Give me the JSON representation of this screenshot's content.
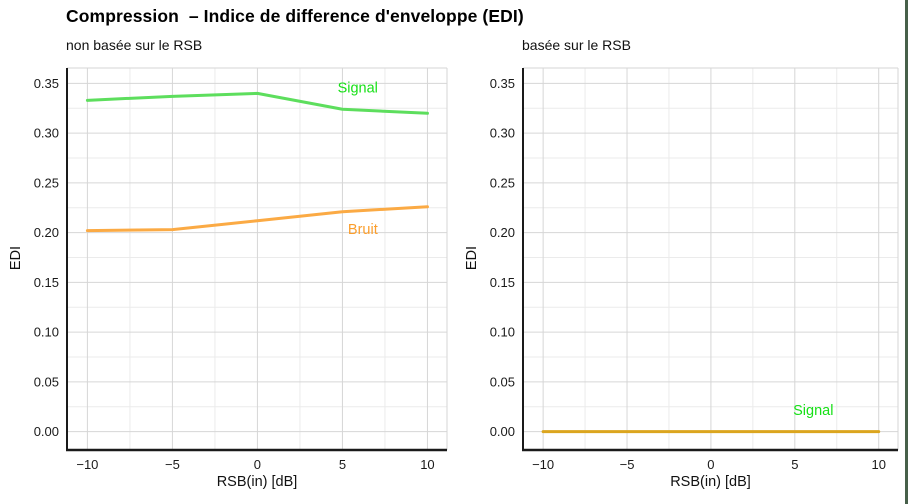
{
  "title": "Compression  – Indice de difference d'enveloppe (EDI)",
  "frame_edge_color": "#47604a",
  "axis_color": "#1a1a1a",
  "grid_major_color": "#d6d6d6",
  "grid_minor_color": "#ebebeb",
  "tick_label_color": "#1a1a1a",
  "chart_data": [
    {
      "type": "line",
      "subtitle": "non basée sur le RSB",
      "xlabel": "RSB(in) [dB]",
      "ylabel": "EDI",
      "grid": true,
      "x": [
        -10,
        -5,
        0,
        5,
        10
      ],
      "xlim": [
        -11.2,
        11.15
      ],
      "ylim": [
        -0.0185,
        0.3655
      ],
      "xticks": [
        -10,
        -5,
        0,
        5,
        10
      ],
      "xtick_labels": [
        "−10",
        "−5",
        "0",
        "5",
        "10"
      ],
      "yticks": [
        0,
        0.05,
        0.1,
        0.15,
        0.2,
        0.25,
        0.3,
        0.35
      ],
      "ytick_labels": [
        "0.00",
        "0.05",
        "0.10",
        "0.15",
        "0.20",
        "0.25",
        "0.30",
        "0.35"
      ],
      "minor_xticks": [
        -7.5,
        -2.5,
        2.5,
        7.5
      ],
      "minor_yticks": [
        0.025,
        0.075,
        0.125,
        0.175,
        0.225,
        0.275,
        0.325
      ],
      "series": [
        {
          "name": "Signal",
          "values": [
            0.333,
            0.337,
            0.34,
            0.324,
            0.32
          ],
          "line_color": "#5dde5d",
          "label_color": "#17e017",
          "label_x": 5.9,
          "label_y": 0.346
        },
        {
          "name": "Bruit",
          "values": [
            0.202,
            0.203,
            0.212,
            0.221,
            0.226
          ],
          "line_color": "#fbaa44",
          "label_color": "#fb9e2d",
          "label_x": 6.2,
          "label_y": 0.2035
        }
      ]
    },
    {
      "type": "line",
      "subtitle": "basée sur le RSB",
      "xlabel": "RSB(in) [dB]",
      "ylabel": "EDI",
      "grid": true,
      "x": [
        -10,
        -5,
        0,
        5,
        10
      ],
      "xlim": [
        -11.2,
        11.15
      ],
      "ylim": [
        -0.0185,
        0.3655
      ],
      "xticks": [
        -10,
        -5,
        0,
        5,
        10
      ],
      "xtick_labels": [
        "−10",
        "−5",
        "0",
        "5",
        "10"
      ],
      "yticks": [
        0,
        0.05,
        0.1,
        0.15,
        0.2,
        0.25,
        0.3,
        0.35
      ],
      "ytick_labels": [
        "0.00",
        "0.05",
        "0.10",
        "0.15",
        "0.20",
        "0.25",
        "0.30",
        "0.35"
      ],
      "minor_xticks": [
        -7.5,
        -2.5,
        2.5,
        7.5
      ],
      "minor_yticks": [
        0.025,
        0.075,
        0.125,
        0.175,
        0.225,
        0.275,
        0.325
      ],
      "series": [
        {
          "name": "Signal",
          "values": [
            0,
            0,
            0,
            0,
            0
          ],
          "line_color": "#dba51e",
          "label_color": "#17e017",
          "label_x": 6.1,
          "label_y": 0.0215
        }
      ]
    }
  ]
}
